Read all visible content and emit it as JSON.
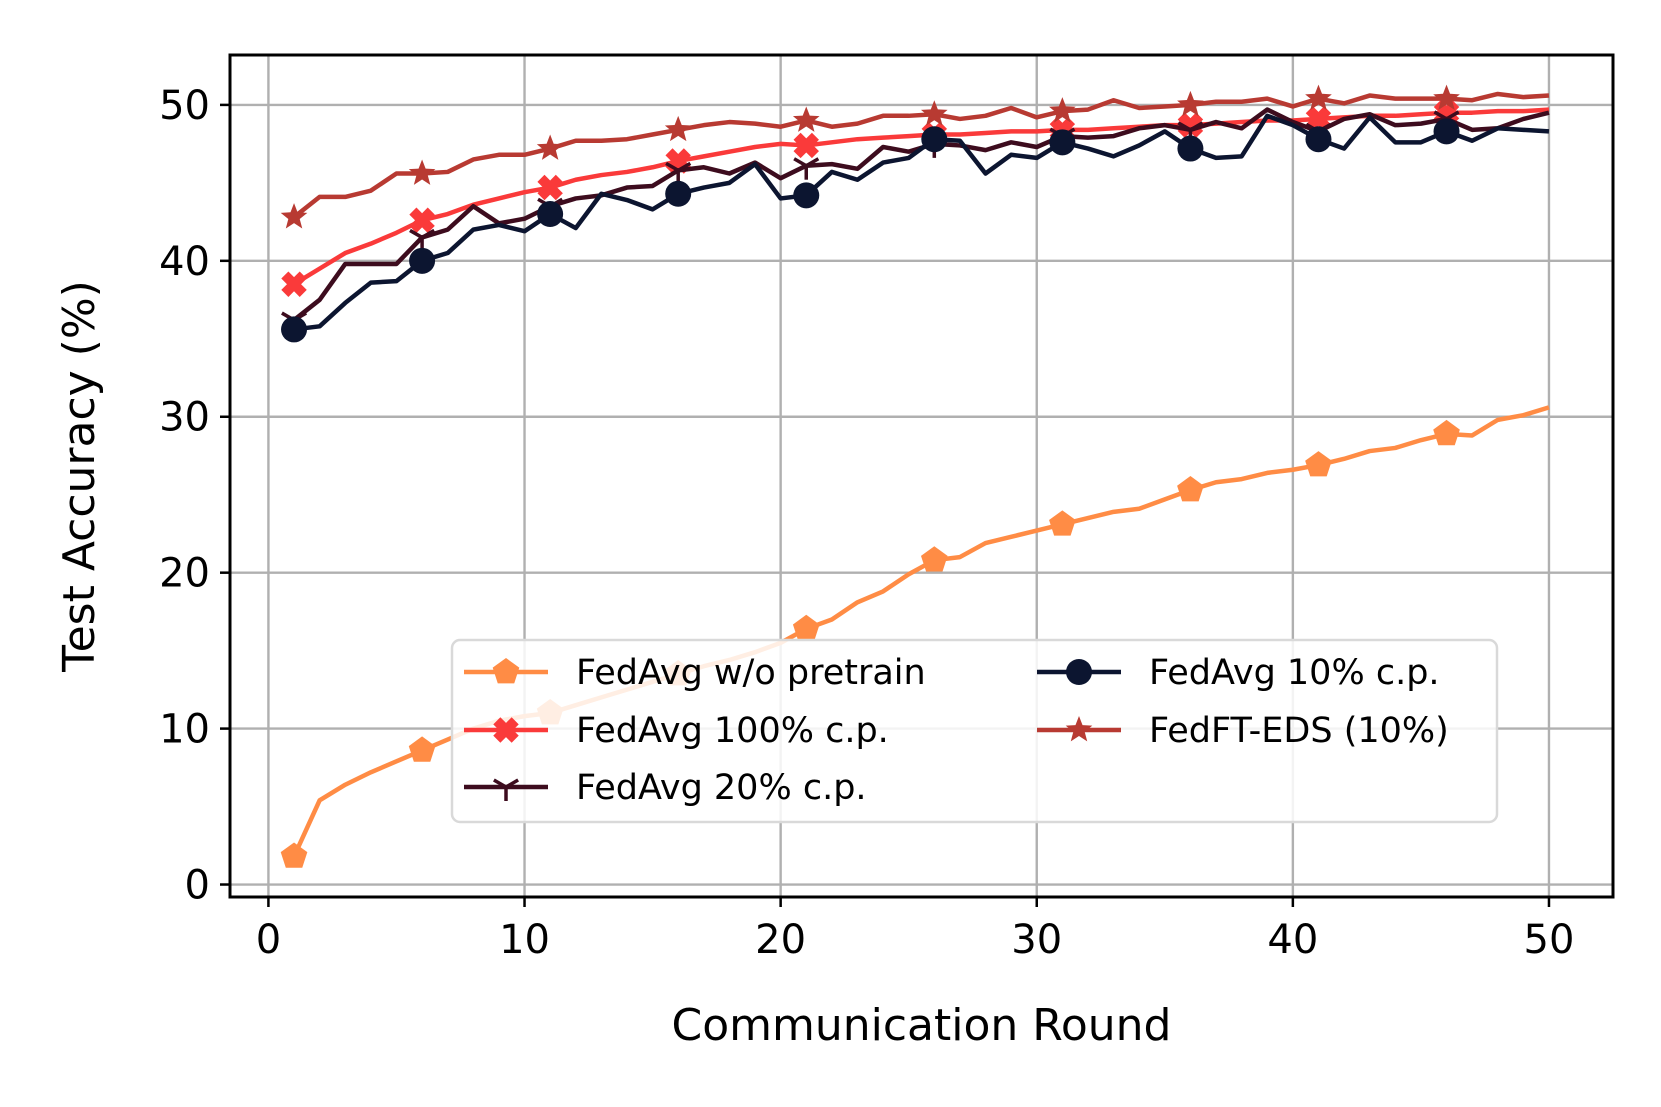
{
  "chart_data": {
    "type": "line",
    "title": "",
    "xlabel": "Communication Round",
    "ylabel": "Test Accuracy (%)",
    "xlim": [
      -1.5,
      52.5
    ],
    "ylim": [
      -0.8,
      53.2
    ],
    "xticks": [
      0,
      10,
      20,
      30,
      40,
      50
    ],
    "yticks": [
      0,
      10,
      20,
      30,
      40,
      50
    ],
    "grid": true,
    "legend_position": "lower-right",
    "marker_every": 5,
    "x": [
      1,
      2,
      3,
      4,
      5,
      6,
      7,
      8,
      9,
      10,
      11,
      12,
      13,
      14,
      15,
      16,
      17,
      18,
      19,
      20,
      21,
      22,
      23,
      24,
      25,
      26,
      27,
      28,
      29,
      30,
      31,
      32,
      33,
      34,
      35,
      36,
      37,
      38,
      39,
      40,
      41,
      42,
      43,
      44,
      45,
      46,
      47,
      48,
      49,
      50
    ],
    "series": [
      {
        "name": "FedAvg w/o pretrain",
        "color": "#ff8c45",
        "marker": "pentagon",
        "values": [
          1.8,
          5.4,
          6.4,
          7.2,
          7.9,
          8.6,
          9.3,
          10.0,
          10.5,
          10.8,
          11.0,
          11.5,
          12.0,
          12.5,
          13.0,
          13.5,
          14.0,
          14.4,
          14.9,
          15.5,
          16.4,
          17.0,
          18.1,
          18.8,
          19.9,
          20.8,
          21.0,
          21.9,
          22.3,
          22.7,
          23.1,
          23.5,
          23.9,
          24.1,
          24.7,
          25.3,
          25.8,
          26.0,
          26.4,
          26.6,
          26.9,
          27.3,
          27.8,
          28.0,
          28.5,
          28.9,
          28.8,
          29.8,
          30.1,
          30.6
        ]
      },
      {
        "name": "FedAvg 100% c.p.",
        "color": "#fa3a3a",
        "marker": "plus-filled",
        "values": [
          38.5,
          39.5,
          40.5,
          41.1,
          41.8,
          42.6,
          43.0,
          43.6,
          44.0,
          44.4,
          44.7,
          45.2,
          45.5,
          45.7,
          46.0,
          46.4,
          46.7,
          47.0,
          47.3,
          47.5,
          47.4,
          47.6,
          47.8,
          47.9,
          48.0,
          48.1,
          48.1,
          48.2,
          48.3,
          48.3,
          48.4,
          48.4,
          48.5,
          48.6,
          48.7,
          48.7,
          48.8,
          48.9,
          49.0,
          49.0,
          49.1,
          49.2,
          49.3,
          49.3,
          49.4,
          49.5,
          49.5,
          49.6,
          49.6,
          49.7
        ]
      },
      {
        "name": "FedAvg 20% c.p.",
        "color": "#3d0c1e",
        "marker": "tri-down",
        "values": [
          36.2,
          37.5,
          39.8,
          39.8,
          39.8,
          41.5,
          42.0,
          43.5,
          42.4,
          42.7,
          43.5,
          44.0,
          44.2,
          44.7,
          44.8,
          45.8,
          46.0,
          45.6,
          46.3,
          45.3,
          46.1,
          46.2,
          45.9,
          47.3,
          47.0,
          47.5,
          47.4,
          47.1,
          47.6,
          47.3,
          48.0,
          47.9,
          48.0,
          48.5,
          48.7,
          48.4,
          48.9,
          48.5,
          49.7,
          48.9,
          48.3,
          49.1,
          49.4,
          48.7,
          48.8,
          49.1,
          48.4,
          48.5,
          49.1,
          49.5
        ]
      },
      {
        "name": "FedAvg 10% c.p.",
        "color": "#0c1530",
        "marker": "circle",
        "values": [
          35.6,
          35.8,
          37.3,
          38.6,
          38.7,
          40.0,
          40.5,
          42.0,
          42.3,
          41.9,
          43.0,
          42.1,
          44.3,
          43.9,
          43.3,
          44.3,
          44.7,
          45.0,
          46.2,
          44.0,
          44.2,
          45.7,
          45.2,
          46.3,
          46.6,
          47.8,
          47.7,
          45.6,
          46.8,
          46.6,
          47.6,
          47.2,
          46.7,
          47.4,
          48.3,
          47.2,
          46.6,
          46.7,
          49.3,
          48.7,
          47.8,
          47.2,
          49.2,
          47.6,
          47.6,
          48.3,
          47.7,
          48.5,
          48.4,
          48.3
        ]
      },
      {
        "name": "FedFT-EDS (10%)",
        "color": "#b83a32",
        "marker": "star",
        "values": [
          42.8,
          44.1,
          44.1,
          44.5,
          45.6,
          45.6,
          45.7,
          46.5,
          46.8,
          46.8,
          47.2,
          47.7,
          47.7,
          47.8,
          48.1,
          48.4,
          48.7,
          48.9,
          48.8,
          48.6,
          49.0,
          48.6,
          48.8,
          49.3,
          49.3,
          49.4,
          49.1,
          49.3,
          49.8,
          49.2,
          49.6,
          49.7,
          50.3,
          49.8,
          49.9,
          50.0,
          50.2,
          50.2,
          50.4,
          49.9,
          50.4,
          50.1,
          50.6,
          50.4,
          50.4,
          50.4,
          50.3,
          50.7,
          50.5,
          50.6
        ]
      }
    ],
    "legend_columns": [
      [
        "FedAvg w/o pretrain",
        "FedAvg 100% c.p.",
        "FedAvg 20% c.p."
      ],
      [
        "FedAvg 10% c.p.",
        "FedFT-EDS (10%)"
      ]
    ]
  }
}
